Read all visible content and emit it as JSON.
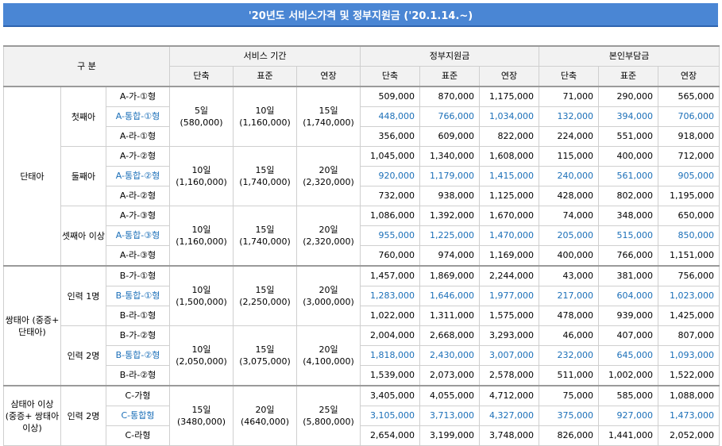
{
  "title": "'20년도  서비스가격 및 정부지원금 ('20.1.14.~)",
  "header": {
    "category": "구  분",
    "service_period": "서비스 기간",
    "gov_support": "정부지원금",
    "self_pay": "본인부담금",
    "short": "단축",
    "standard": "표준",
    "extended": "연장"
  },
  "groups": [
    {
      "name": "단태아",
      "subgroups": [
        {
          "name": "첫째아",
          "period": {
            "short": "5일",
            "short_price": "(580,000)",
            "standard": "10일",
            "standard_price": "(1,160,000)",
            "extended": "15일",
            "extended_price": "(1,740,000)"
          },
          "rows": [
            {
              "type": "A-가-①형",
              "blue": false,
              "gov": [
                "509,000",
                "870,000",
                "1,175,000"
              ],
              "self": [
                "71,000",
                "290,000",
                "565,000"
              ]
            },
            {
              "type": "A-통합-①형",
              "blue": true,
              "gov": [
                "448,000",
                "766,000",
                "1,034,000"
              ],
              "self": [
                "132,000",
                "394,000",
                "706,000"
              ]
            },
            {
              "type": "A-라-①형",
              "blue": false,
              "gov": [
                "356,000",
                "609,000",
                "822,000"
              ],
              "self": [
                "224,000",
                "551,000",
                "918,000"
              ]
            }
          ]
        },
        {
          "name": "둘째아",
          "period": {
            "short": "10일",
            "short_price": "(1,160,000)",
            "standard": "15일",
            "standard_price": "(1,740,000)",
            "extended": "20일",
            "extended_price": "(2,320,000)"
          },
          "rows": [
            {
              "type": "A-가-②형",
              "blue": false,
              "gov": [
                "1,045,000",
                "1,340,000",
                "1,608,000"
              ],
              "self": [
                "115,000",
                "400,000",
                "712,000"
              ]
            },
            {
              "type": "A-통합-②형",
              "blue": true,
              "gov": [
                "920,000",
                "1,179,000",
                "1,415,000"
              ],
              "self": [
                "240,000",
                "561,000",
                "905,000"
              ]
            },
            {
              "type": "A-라-②형",
              "blue": false,
              "gov": [
                "732,000",
                "938,000",
                "1,125,000"
              ],
              "self": [
                "428,000",
                "802,000",
                "1,195,000"
              ]
            }
          ]
        },
        {
          "name": "셋째아 이상",
          "period": {
            "short": "10일",
            "short_price": "(1,160,000)",
            "standard": "15일",
            "standard_price": "(1,740,000)",
            "extended": "20일",
            "extended_price": "(2,320,000)"
          },
          "rows": [
            {
              "type": "A-가-③형",
              "blue": false,
              "gov": [
                "1,086,000",
                "1,392,000",
                "1,670,000"
              ],
              "self": [
                "74,000",
                "348,000",
                "650,000"
              ]
            },
            {
              "type": "A-통합-③형",
              "blue": true,
              "gov": [
                "955,000",
                "1,225,000",
                "1,470,000"
              ],
              "self": [
                "205,000",
                "515,000",
                "850,000"
              ]
            },
            {
              "type": "A-라-③형",
              "blue": false,
              "gov": [
                "760,000",
                "974,000",
                "1,169,000"
              ],
              "self": [
                "400,000",
                "766,000",
                "1,151,000"
              ]
            }
          ]
        }
      ]
    },
    {
      "name": "쌍태아 (중증+ 단태아)",
      "subgroups": [
        {
          "name": "인력 1명",
          "period": {
            "short": "10일",
            "short_price": "(1,500,000)",
            "standard": "15일",
            "standard_price": "(2,250,000)",
            "extended": "20일",
            "extended_price": "(3,000,000)"
          },
          "rows": [
            {
              "type": "B-가-①형",
              "blue": false,
              "gov": [
                "1,457,000",
                "1,869,000",
                "2,244,000"
              ],
              "self": [
                "43,000",
                "381,000",
                "756,000"
              ]
            },
            {
              "type": "B-통합-①형",
              "blue": true,
              "gov": [
                "1,283,000",
                "1,646,000",
                "1,977,000"
              ],
              "self": [
                "217,000",
                "604,000",
                "1,023,000"
              ]
            },
            {
              "type": "B-라-①형",
              "blue": false,
              "gov": [
                "1,022,000",
                "1,311,000",
                "1,575,000"
              ],
              "self": [
                "478,000",
                "939,000",
                "1,425,000"
              ]
            }
          ]
        },
        {
          "name": "인력 2명",
          "period": {
            "short": "10일",
            "short_price": "(2,050,000)",
            "standard": "15일",
            "standard_price": "(3,075,000)",
            "extended": "20일",
            "extended_price": "(4,100,000)"
          },
          "rows": [
            {
              "type": "B-가-②형",
              "blue": false,
              "gov": [
                "2,004,000",
                "2,668,000",
                "3,293,000"
              ],
              "self": [
                "46,000",
                "407,000",
                "807,000"
              ]
            },
            {
              "type": "B-통합-②형",
              "blue": true,
              "gov": [
                "1,818,000",
                "2,430,000",
                "3,007,000"
              ],
              "self": [
                "232,000",
                "645,000",
                "1,093,000"
              ]
            },
            {
              "type": "B-라-②형",
              "blue": false,
              "gov": [
                "1,539,000",
                "2,073,000",
                "2,578,000"
              ],
              "self": [
                "511,000",
                "1,002,000",
                "1,522,000"
              ]
            }
          ]
        }
      ]
    },
    {
      "name": "삼태아 이상 (중증+ 쌍태아 이상)",
      "subgroups": [
        {
          "name": "인력 2명",
          "period": {
            "short": "15일",
            "short_price": "(3480,000)",
            "standard": "20일",
            "standard_price": "(4640,000)",
            "extended": "25일",
            "extended_price": "(5,800,000)"
          },
          "rows": [
            {
              "type": "C-가형",
              "blue": false,
              "gov": [
                "3,405,000",
                "4,055,000",
                "4,712,000"
              ],
              "self": [
                "75,000",
                "585,000",
                "1,088,000"
              ]
            },
            {
              "type": "C-통합형",
              "blue": true,
              "gov": [
                "3,105,000",
                "3,713,000",
                "4,327,000"
              ],
              "self": [
                "375,000",
                "927,000",
                "1,473,000"
              ]
            },
            {
              "type": "C-라형",
              "blue": false,
              "gov": [
                "2,654,000",
                "3,199,000",
                "3,748,000"
              ],
              "self": [
                "826,000",
                "1,441,000",
                "2,052,000"
              ]
            }
          ]
        }
      ]
    }
  ],
  "colors": {
    "title_bg": "#4a86d4",
    "header_bg": "#f2f2f2",
    "blue_text": "#1b6fb8",
    "border": "#cfcfcf"
  }
}
